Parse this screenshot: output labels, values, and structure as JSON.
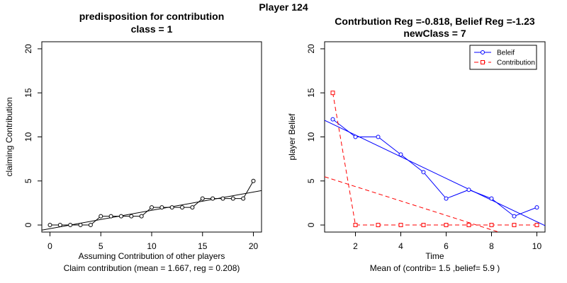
{
  "figure": {
    "title": "Player 124"
  },
  "colors": {
    "belief": "#0000ff",
    "contribution": "#ff0000",
    "axis": "#000000"
  },
  "chart_data": [
    {
      "type": "scatter",
      "title": "predisposition for contribution",
      "subtitle": "class = 1",
      "xlabel": "Assuming Contribution of other players",
      "sublabel": "Claim contribution (mean = 1.667, reg = 0.208)",
      "ylabel": "claiming Contribution",
      "xlim": [
        -0.8,
        20.8
      ],
      "ylim": [
        -0.8,
        20.8
      ],
      "xticks": [
        0,
        5,
        10,
        15,
        20
      ],
      "yticks": [
        0,
        5,
        10,
        15,
        20
      ],
      "series": [
        {
          "x": [
            0,
            1,
            2,
            3,
            4,
            5,
            6,
            7,
            8,
            9,
            10,
            11,
            12,
            13,
            14,
            15,
            16,
            17,
            18,
            19,
            20
          ],
          "y": [
            0,
            0,
            0,
            0,
            0,
            1,
            1,
            1,
            1,
            1,
            2,
            2,
            2,
            2,
            2,
            3,
            3,
            3,
            3,
            3,
            5
          ],
          "marker": "circle",
          "color": "#000000"
        }
      ],
      "regression": {
        "intercept": -0.417,
        "slope": 0.208,
        "color": "#000000"
      }
    },
    {
      "type": "line",
      "title": "Contrbution Reg =-0.818, Belief Reg =-1.23",
      "subtitle": "newClass = 7",
      "xlabel": "Time",
      "sublabel": "Mean of (contrib= 1.5  ,belief= 5.9 )",
      "ylabel": "player Belief",
      "xlim": [
        0.64,
        10.36
      ],
      "ylim": [
        -0.8,
        20.8
      ],
      "xticks": [
        2,
        4,
        6,
        8,
        10
      ],
      "yticks": [
        0,
        5,
        10,
        15,
        20
      ],
      "legend": {
        "position": "top-right",
        "entries": [
          "Beleif",
          "Contribution"
        ]
      },
      "series": [
        {
          "name": "Beleif",
          "x": [
            1,
            2,
            3,
            4,
            5,
            6,
            7,
            8,
            9,
            10
          ],
          "y": [
            12,
            10,
            10,
            8,
            6,
            3,
            4,
            3,
            1,
            2
          ],
          "marker": "circle",
          "style": "solid",
          "color": "#0000ff"
        },
        {
          "name": "Contribution",
          "x": [
            1,
            2,
            3,
            4,
            5,
            6,
            7,
            8,
            9,
            10
          ],
          "y": [
            15,
            0,
            0,
            0,
            0,
            0,
            0,
            0,
            0,
            0
          ],
          "marker": "square",
          "style": "dashed",
          "color": "#ff0000"
        }
      ],
      "regressions": [
        {
          "series": "Beleif",
          "intercept": 12.67,
          "slope": -1.23,
          "color": "#0000ff",
          "style": "solid"
        },
        {
          "series": "Contribution",
          "intercept": 6.0,
          "slope": -0.818,
          "color": "#ff0000",
          "style": "dashed"
        }
      ]
    }
  ]
}
